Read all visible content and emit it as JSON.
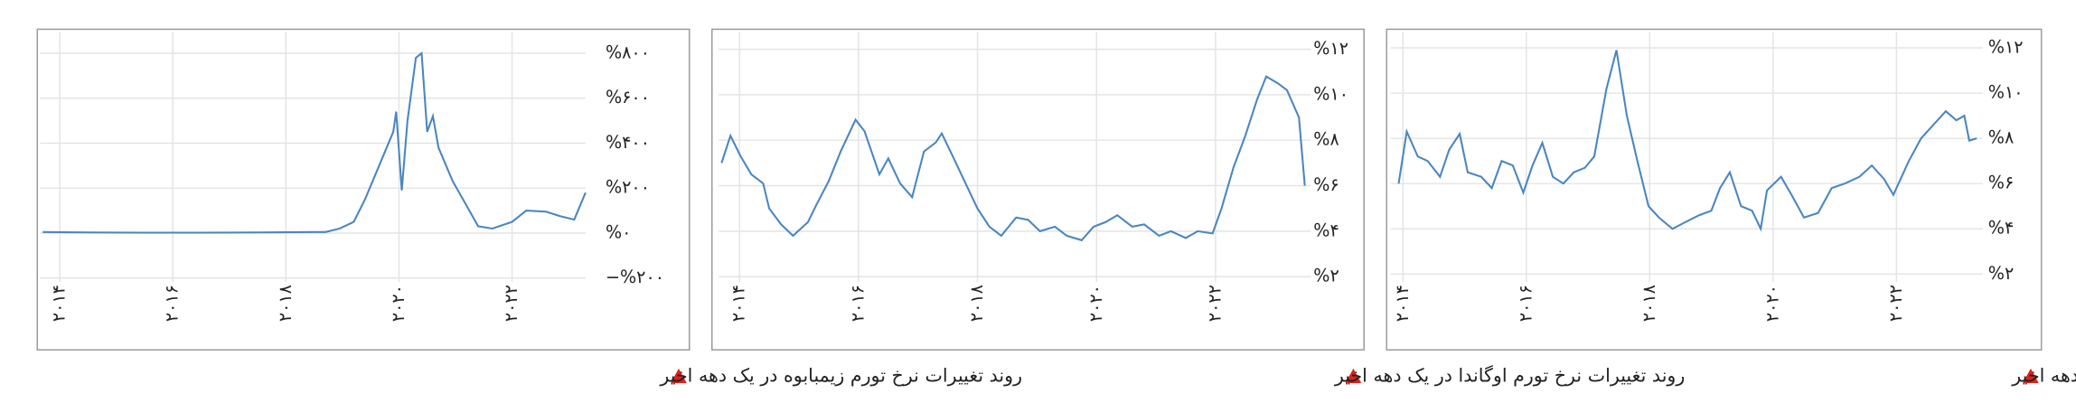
{
  "chart_data": [
    {
      "type": "line",
      "title": "روند تغییرات نرخ تورم زیمبابوه در یک دهه اخیر",
      "xlim": [
        2013.65,
        2023.3
      ],
      "xticks": [
        {
          "value": 2014,
          "label": "۲۰۱۴"
        },
        {
          "value": 2016,
          "label": "۲۰۱۶"
        },
        {
          "value": 2018,
          "label": "۲۰۱۸"
        },
        {
          "value": 2020,
          "label": "۲۰۲۰"
        },
        {
          "value": 2022,
          "label": "۲۰۲۲"
        }
      ],
      "ylim": [
        -200,
        800
      ],
      "yticks": [
        {
          "value": 800,
          "label": "%۸۰۰"
        },
        {
          "value": 600,
          "label": "%۶۰۰"
        },
        {
          "value": 400,
          "label": "%۴۰۰"
        },
        {
          "value": 200,
          "label": "%۲۰۰"
        },
        {
          "value": 0,
          "label": "%۰"
        },
        {
          "value": -200,
          "label": "−%۲۰۰"
        }
      ],
      "grid": true,
      "series": [
        {
          "color": "#4a86c0",
          "x": [
            2013.7,
            2014.5,
            2015.5,
            2016.5,
            2017.5,
            2018.5,
            2018.7,
            2018.95,
            2019.2,
            2019.4,
            2019.65,
            2019.9,
            2019.95,
            2020.05,
            2020.15,
            2020.3,
            2020.4,
            2020.5,
            2020.6,
            2020.7,
            2020.95,
            2021.2,
            2021.4,
            2021.65,
            2022.0,
            2022.25,
            2022.6,
            2022.85,
            2023.1,
            2023.3
          ],
          "values": [
            5,
            3,
            2,
            2,
            3,
            5,
            5,
            20,
            50,
            150,
            300,
            450,
            540,
            190,
            500,
            780,
            800,
            450,
            520,
            380,
            230,
            120,
            30,
            20,
            50,
            100,
            95,
            75,
            60,
            180
          ]
        }
      ]
    },
    {
      "type": "line",
      "title": "روند تغییرات نرخ تورم اوگاندا در یک دهه اخیر",
      "xlim": [
        2013.65,
        2023.6
      ],
      "xticks": [
        {
          "value": 2014,
          "label": "۲۰۱۴"
        },
        {
          "value": 2016,
          "label": "۲۰۱۶"
        },
        {
          "value": 2018,
          "label": "۲۰۱۸"
        },
        {
          "value": 2020,
          "label": "۲۰۲۰"
        },
        {
          "value": 2022,
          "label": "۲۰۲۲"
        }
      ],
      "ylim": [
        2,
        12
      ],
      "yticks": [
        {
          "value": 12,
          "label": "%۱۲"
        },
        {
          "value": 10,
          "label": "%۱۰"
        },
        {
          "value": 8,
          "label": "%۸"
        },
        {
          "value": 6,
          "label": "%۶"
        },
        {
          "value": 4,
          "label": "%۴"
        },
        {
          "value": 2,
          "label": "%۲"
        }
      ],
      "grid": true,
      "series": [
        {
          "color": "#4a86c0",
          "x": [
            2013.7,
            2013.85,
            2014.02,
            2014.2,
            2014.4,
            2014.5,
            2014.7,
            2014.9,
            2015.15,
            2015.3,
            2015.5,
            2015.7,
            2015.95,
            2016.1,
            2016.35,
            2016.5,
            2016.7,
            2016.9,
            2017.1,
            2017.3,
            2017.4,
            2017.6,
            2017.8,
            2018.0,
            2018.2,
            2018.4,
            2018.65,
            2018.85,
            2019.05,
            2019.3,
            2019.5,
            2019.75,
            2019.95,
            2020.15,
            2020.35,
            2020.6,
            2020.8,
            2021.05,
            2021.25,
            2021.5,
            2021.7,
            2021.95,
            2022.1,
            2022.3,
            2022.5,
            2022.7,
            2022.85,
            2023.05,
            2023.2,
            2023.4,
            2023.5
          ],
          "values": [
            7,
            8.2,
            7.3,
            6.5,
            6.1,
            5,
            4.3,
            3.8,
            4.4,
            5.2,
            6.2,
            7.5,
            8.9,
            8.4,
            6.5,
            7.2,
            6.1,
            5.5,
            7.5,
            7.9,
            8.3,
            7.2,
            6.1,
            5,
            4.2,
            3.8,
            4.6,
            4.5,
            4,
            4.2,
            3.8,
            3.6,
            4.2,
            4.4,
            4.7,
            4.2,
            4.3,
            3.8,
            4,
            3.7,
            4,
            3.9,
            5,
            6.8,
            8.2,
            9.8,
            10.8,
            10.5,
            10.2,
            9,
            6
          ]
        }
      ]
    },
    {
      "type": "line",
      "title": "روند تغییرات نرخ تورم کنیا در یک دهه اخیر",
      "xlim": [
        2013.8,
        2023.4
      ],
      "xticks": [
        {
          "value": 2014,
          "label": "۲۰۱۴"
        },
        {
          "value": 2016,
          "label": "۲۰۱۶"
        },
        {
          "value": 2018,
          "label": "۲۰۱۸"
        },
        {
          "value": 2020,
          "label": "۲۰۲۰"
        },
        {
          "value": 2022,
          "label": "۲۰۲۲"
        }
      ],
      "ylim": [
        2,
        12
      ],
      "yticks": [
        {
          "value": 12,
          "label": "%۱۲"
        },
        {
          "value": 10,
          "label": "%۱۰"
        },
        {
          "value": 8,
          "label": "%۸"
        },
        {
          "value": 6,
          "label": "%۶"
        },
        {
          "value": 4,
          "label": "%۴"
        },
        {
          "value": 2,
          "label": "%۲"
        }
      ],
      "grid": true,
      "series": [
        {
          "color": "#4a86c0",
          "x": [
            2013.93,
            2014.06,
            2014.24,
            2014.4,
            2014.6,
            2014.75,
            2014.92,
            2015.05,
            2015.27,
            2015.44,
            2015.6,
            2015.78,
            2015.95,
            2016.1,
            2016.26,
            2016.43,
            2016.6,
            2016.77,
            2016.95,
            2017.1,
            2017.3,
            2017.46,
            2017.63,
            2017.8,
            2017.98,
            2018.15,
            2018.37,
            2018.58,
            2018.8,
            2019.0,
            2019.14,
            2019.3,
            2019.48,
            2019.66,
            2019.8,
            2019.9,
            2020.13,
            2020.3,
            2020.5,
            2020.73,
            2020.95,
            2021.16,
            2021.4,
            2021.6,
            2021.8,
            2021.95,
            2022.2,
            2022.4,
            2022.6,
            2022.8,
            2022.97,
            2023.1,
            2023.18,
            2023.3
          ],
          "values": [
            6,
            8.3,
            7.2,
            7,
            6.3,
            7.5,
            8.2,
            6.5,
            6.3,
            5.8,
            7,
            6.8,
            5.6,
            6.8,
            7.8,
            6.3,
            6,
            6.5,
            6.7,
            7.2,
            10.2,
            11.9,
            9,
            7,
            5,
            4.5,
            4,
            4.3,
            4.6,
            4.8,
            5.8,
            6.5,
            5,
            4.8,
            4,
            5.7,
            6.3,
            5.5,
            4.5,
            4.7,
            5.8,
            6,
            6.3,
            6.8,
            6.2,
            5.5,
            7,
            8,
            8.6,
            9.2,
            8.8,
            9,
            7.9,
            8
          ]
        }
      ]
    }
  ]
}
